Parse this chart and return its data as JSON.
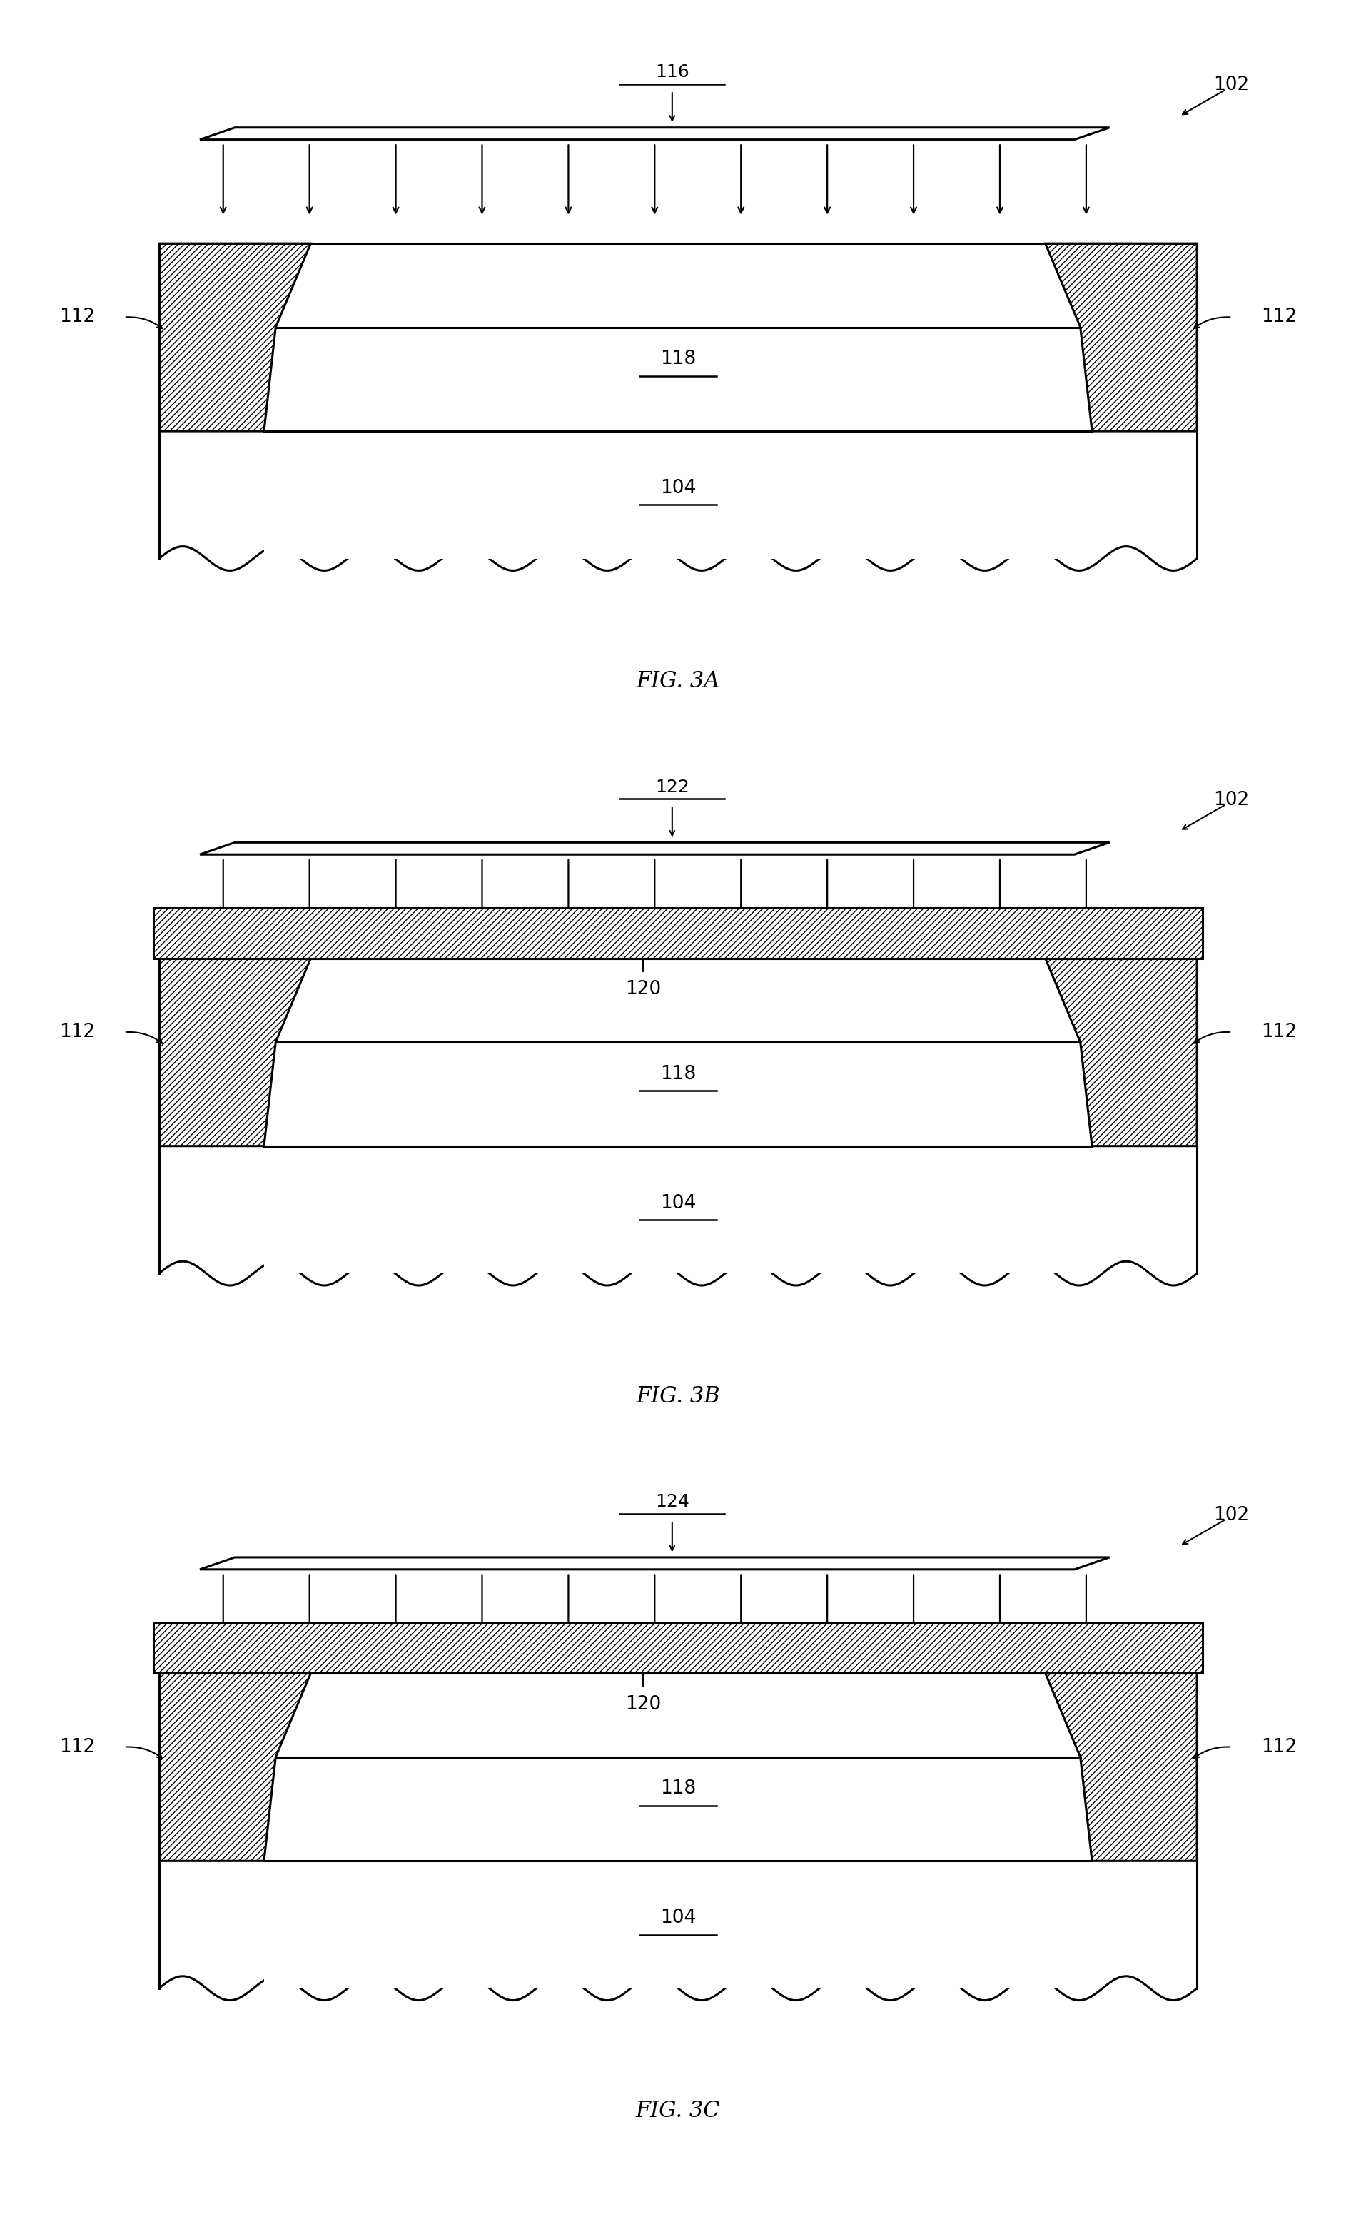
{
  "fig_labels": [
    "FIG. 3A",
    "FIG. 3B",
    "FIG. 3C"
  ],
  "beam_labels": [
    "116",
    "122",
    "124"
  ],
  "label_102": "102",
  "label_112": "112",
  "label_118": "118",
  "label_104": "104",
  "label_120": "120",
  "bg_color": "#ffffff",
  "line_color": "#000000",
  "n_arrows": 11,
  "fig_width": 19.0,
  "fig_height": 31.3,
  "panels": [
    {
      "has_top_layer": false,
      "beam_label": "116",
      "fig_label": "FIG. 3A"
    },
    {
      "has_top_layer": true,
      "beam_label": "122",
      "fig_label": "FIG. 3B"
    },
    {
      "has_top_layer": true,
      "beam_label": "124",
      "fig_label": "FIG. 3C"
    }
  ]
}
